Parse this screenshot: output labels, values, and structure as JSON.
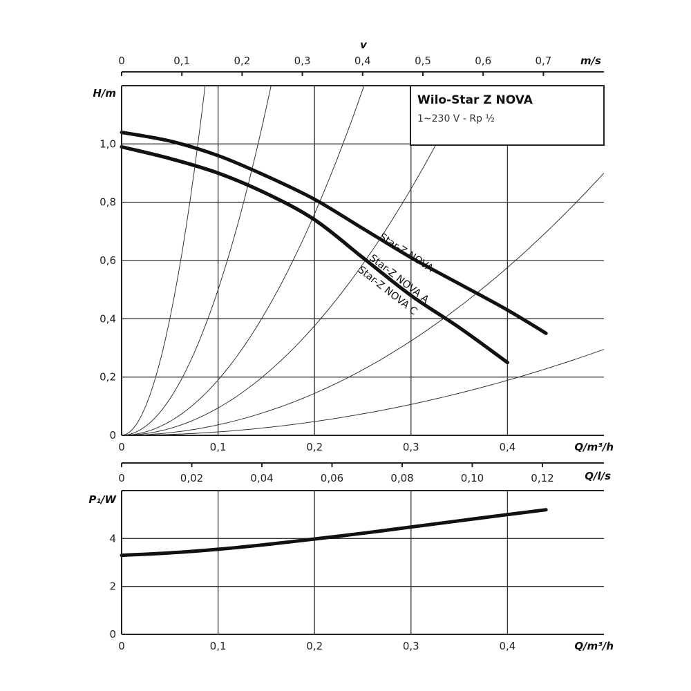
{
  "chart_data": [
    {
      "type": "line",
      "box": {
        "title": "Wilo-Star Z NOVA",
        "subtitle": "1~230 V - Rp ½"
      },
      "ylabel": "H/m",
      "xlabel": "Q/m³/h",
      "top_axis": {
        "label": "v",
        "unit": "m/s",
        "ticks": [
          "0",
          "0,1",
          "0,2",
          "0,3",
          "0,4",
          "0,5",
          "0,6",
          "0,7"
        ]
      },
      "xlim": [
        0,
        0.5
      ],
      "ylim": [
        0,
        1.2
      ],
      "x_ticks": [
        "0",
        "0,1",
        "0,2",
        "0,3",
        "0,4"
      ],
      "y_ticks": [
        "0",
        "0,2",
        "0,4",
        "0,6",
        "0,8",
        "1,0"
      ],
      "grid": true,
      "series": [
        {
          "name": "Star-Z NOVA",
          "x": [
            0,
            0.05,
            0.1,
            0.15,
            0.2,
            0.25,
            0.3,
            0.35,
            0.4,
            0.44
          ],
          "y": [
            1.04,
            1.01,
            0.96,
            0.89,
            0.81,
            0.71,
            0.61,
            0.52,
            0.43,
            0.35
          ]
        },
        {
          "name": "Star-Z NOVA A",
          "x": [
            0,
            0.05,
            0.1,
            0.15,
            0.2,
            0.25,
            0.3,
            0.35,
            0.4
          ],
          "y": [
            0.99,
            0.95,
            0.9,
            0.83,
            0.74,
            0.61,
            0.48,
            0.37,
            0.25
          ]
        },
        {
          "name": "Star-Z NOVA C",
          "x": [
            0,
            0.05,
            0.1,
            0.15,
            0.2,
            0.25,
            0.3,
            0.35,
            0.4
          ],
          "y": [
            0.99,
            0.95,
            0.9,
            0.83,
            0.74,
            0.61,
            0.48,
            0.37,
            0.25
          ]
        }
      ],
      "system_curves_k": [
        160,
        50,
        19,
        9.4,
        3.6,
        1.18
      ]
    },
    {
      "type": "line",
      "ylabel": "P₁/W",
      "xlabel": "Q/m³/h",
      "top_axis": {
        "unit": "Q/l/s",
        "ticks": [
          "0",
          "0,02",
          "0,04",
          "0,06",
          "0,08",
          "0,10",
          "0,12"
        ]
      },
      "xlim": [
        0,
        0.5
      ],
      "ylim": [
        0,
        6
      ],
      "x_ticks": [
        "0",
        "0,1",
        "0,2",
        "0,3",
        "0,4"
      ],
      "y_ticks": [
        "0",
        "2",
        "4"
      ],
      "grid": true,
      "series": [
        {
          "x": [
            0,
            0.05,
            0.1,
            0.15,
            0.2,
            0.25,
            0.3,
            0.35,
            0.4,
            0.44
          ],
          "y": [
            3.3,
            3.4,
            3.55,
            3.75,
            3.98,
            4.22,
            4.48,
            4.74,
            5.0,
            5.2
          ]
        }
      ]
    }
  ]
}
